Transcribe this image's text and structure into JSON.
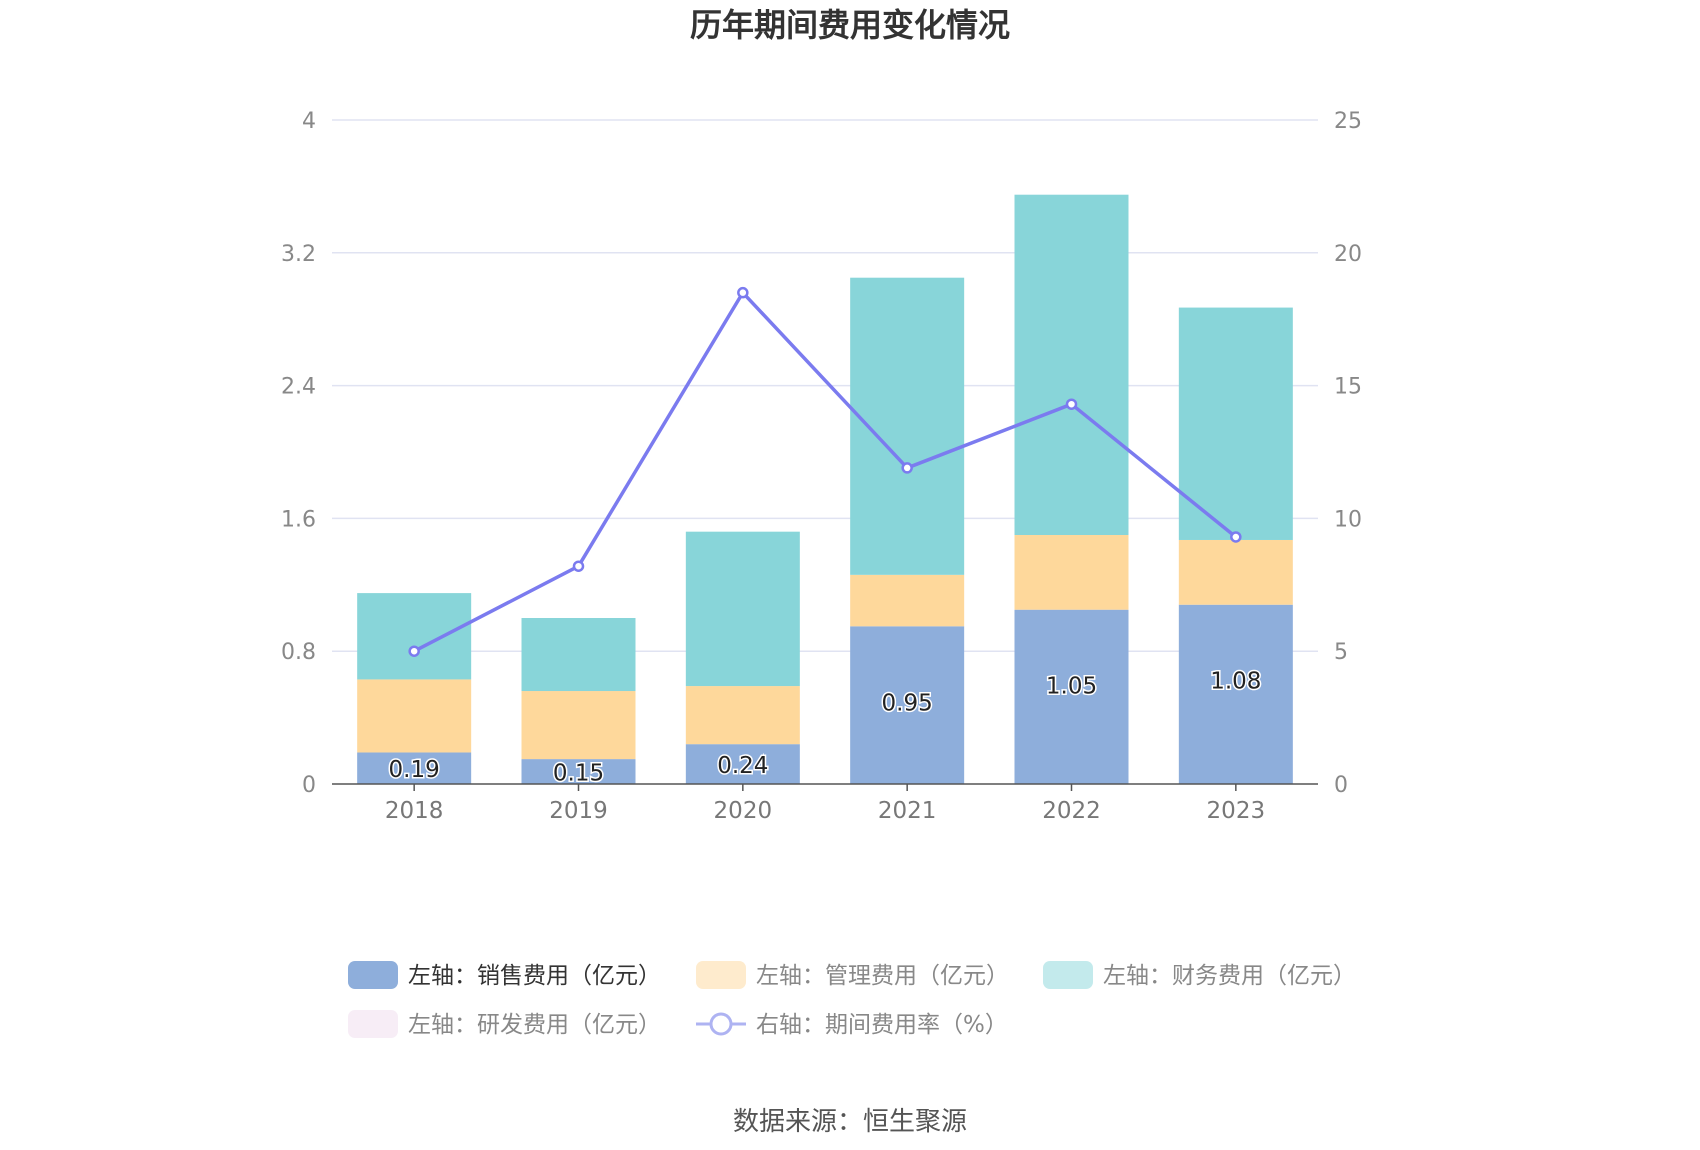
{
  "chart_data": {
    "type": "bar",
    "title": "历年期间费用变化情况",
    "categories": [
      "2018",
      "2019",
      "2020",
      "2021",
      "2022",
      "2023"
    ],
    "left_axis": {
      "ylim": [
        0,
        4
      ],
      "ticks": [
        "0",
        "0.8",
        "1.6",
        "2.4",
        "3.2",
        "4"
      ]
    },
    "right_axis": {
      "ylim": [
        0,
        25
      ],
      "ticks": [
        "0",
        "5",
        "10",
        "15",
        "20",
        "25"
      ]
    },
    "stacked": true,
    "series": [
      {
        "name": "左轴：销售费用（亿元）",
        "axis": "left",
        "color": "#8eaedb",
        "values": [
          0.19,
          0.15,
          0.24,
          0.95,
          1.05,
          1.08
        ],
        "labels": [
          "0.19",
          "0.15",
          "0.24",
          "0.95",
          "1.05",
          "1.08"
        ]
      },
      {
        "name": "左轴：管理费用（亿元）",
        "axis": "left",
        "color": "#fed89b",
        "values": [
          0.44,
          0.41,
          0.35,
          0.31,
          0.45,
          0.39
        ]
      },
      {
        "name": "左轴：财务费用（亿元）",
        "axis": "left",
        "color": "#88d5d9",
        "values": [
          0.52,
          0.44,
          0.93,
          1.79,
          2.05,
          1.4
        ]
      },
      {
        "name": "左轴：研发费用（亿元）",
        "axis": "left",
        "color": "#f0dcee",
        "values": [
          0,
          0,
          0,
          0,
          0,
          0
        ]
      },
      {
        "name": "右轴：期间费用率（%）",
        "axis": "right",
        "type": "line",
        "color": "#7b7bef",
        "values": [
          5.0,
          8.2,
          18.5,
          11.9,
          14.3,
          9.3
        ]
      }
    ],
    "grid": true,
    "legend_position": "bottom"
  },
  "source": "数据来源：恒生聚源"
}
